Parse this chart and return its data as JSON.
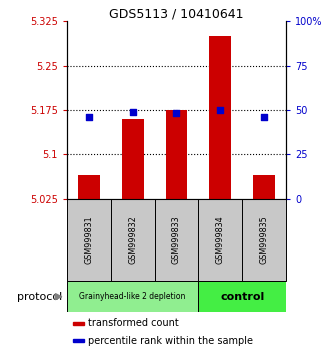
{
  "title": "GDS5113 / 10410641",
  "samples": [
    "GSM999831",
    "GSM999832",
    "GSM999833",
    "GSM999834",
    "GSM999835"
  ],
  "bar_values": [
    5.065,
    5.16,
    5.175,
    5.3,
    5.065
  ],
  "bar_base": 5.025,
  "percentile_values": [
    46,
    49,
    48,
    50,
    46
  ],
  "ylim_left": [
    5.025,
    5.325
  ],
  "ylim_right": [
    0,
    100
  ],
  "yticks_left": [
    5.025,
    5.1,
    5.175,
    5.25,
    5.325
  ],
  "ytick_labels_left": [
    "5.025",
    "5.1",
    "5.175",
    "5.25",
    "5.325"
  ],
  "yticks_right": [
    0,
    25,
    50,
    75,
    100
  ],
  "ytick_labels_right": [
    "0",
    "25",
    "50",
    "75",
    "100%"
  ],
  "bar_color": "#cc0000",
  "dot_color": "#0000cc",
  "group1_samples": [
    0,
    1,
    2
  ],
  "group2_samples": [
    3,
    4
  ],
  "group1_label": "Grainyhead-like 2 depletion",
  "group2_label": "control",
  "group1_color": "#90ee90",
  "group2_color": "#44ee44",
  "protocol_label": "protocol",
  "legend_items": [
    {
      "color": "#cc0000",
      "label": "transformed count"
    },
    {
      "color": "#0000cc",
      "label": "percentile rank within the sample"
    }
  ],
  "grid_ticks": [
    5.1,
    5.175,
    5.25
  ],
  "bar_width": 0.5,
  "tick_label_color_left": "#cc0000",
  "tick_label_color_right": "#0000cc",
  "sample_box_color": "#c8c8c8",
  "title_fontsize": 9
}
